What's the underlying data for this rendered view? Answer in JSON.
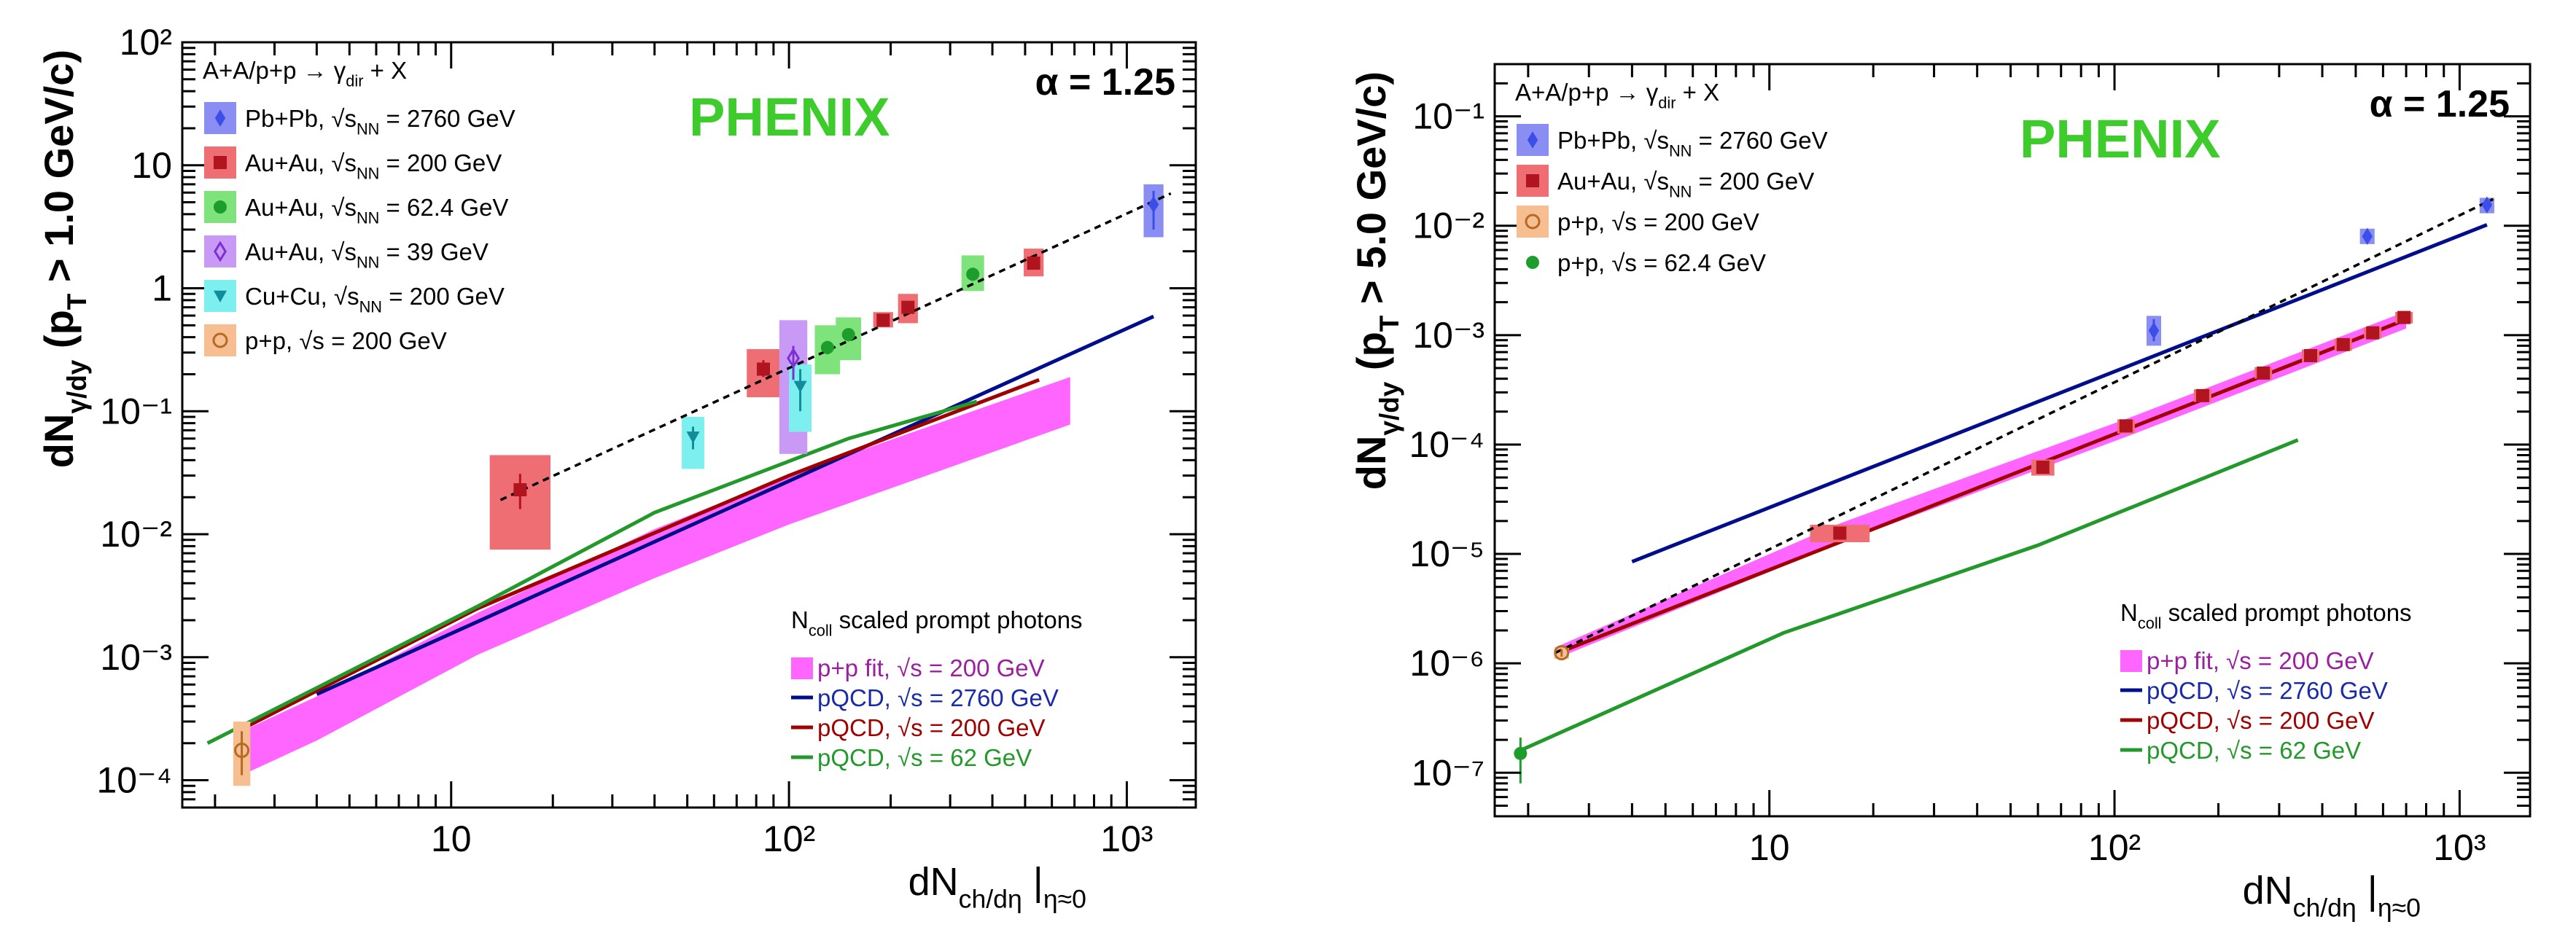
{
  "chart_data": [
    {
      "type": "scatter",
      "title": "PHENIX",
      "alpha_label": "α = 1.25",
      "process": "A+A/p+p → γ_dir + X",
      "xlabel": "dN_ch/dη |_η≈0",
      "ylabel": "dN_γ/dy  (p_T > 1.0 GeV/c)",
      "xscale": "log",
      "yscale": "log",
      "xlim": [
        1.6,
        1600
      ],
      "ylim": [
        6e-05,
        100
      ],
      "x_ticks": [
        {
          "v": 10,
          "label": "10"
        },
        {
          "v": 100,
          "label": "10²"
        },
        {
          "v": 1000,
          "label": "10³"
        }
      ],
      "y_ticks": [
        {
          "v": 0.0001,
          "label": "10⁻⁴"
        },
        {
          "v": 0.001,
          "label": "10⁻³"
        },
        {
          "v": 0.01,
          "label": "10⁻²"
        },
        {
          "v": 0.1,
          "label": "10⁻¹"
        },
        {
          "v": 1,
          "label": "1"
        },
        {
          "v": 10,
          "label": "10"
        },
        {
          "v": 100,
          "label": "10²"
        }
      ],
      "data_legend": [
        {
          "name": "Pb+Pb",
          "energy": "√s_NN = 2760 GeV",
          "color": "#3b4ee8",
          "marker": "diamond",
          "box": "#8a8ef2"
        },
        {
          "name": "Au+Au",
          "energy": "√s_NN = 200 GeV",
          "color": "#b0141e",
          "marker": "square",
          "box": "#ef6e73"
        },
        {
          "name": "Au+Au",
          "energy": "√s_NN = 62.4 GeV",
          "color": "#1c9d2c",
          "marker": "circle",
          "box": "#7fe37c"
        },
        {
          "name": "Au+Au",
          "energy": "√s_NN = 39 GeV",
          "color": "#7d2fd4",
          "marker": "open-diamond",
          "box": "#c89af6"
        },
        {
          "name": "Cu+Cu",
          "energy": "√s_NN = 200 GeV",
          "color": "#138c9a",
          "marker": "triangle-down",
          "box": "#7defef"
        },
        {
          "name": "p+p",
          "energy": "√s = 200 GeV",
          "color": "#b56a25",
          "marker": "open-circle",
          "box": "#f7be92"
        }
      ],
      "band_legend_title": "N_coll scaled prompt photons",
      "band_legend": [
        {
          "label": "p+p fit, √s = 200 GeV",
          "color": "#ff66ff",
          "kind": "band",
          "text_color": "#9b1fa0"
        },
        {
          "label": "pQCD, √s = 2760 GeV",
          "color": "#000e8c",
          "kind": "line",
          "text_color": "#1a2aa8"
        },
        {
          "label": "pQCD, √s = 200 GeV",
          "color": "#a00000",
          "kind": "line",
          "text_color": "#a00000"
        },
        {
          "label": "pQCD, √s = 62 GeV",
          "color": "#22992a",
          "kind": "line",
          "text_color": "#22992a"
        }
      ],
      "band": {
        "color": "#ff66ff",
        "x": [
          2.4,
          4,
          12,
          40,
          100,
          680
        ],
        "upper": [
          0.00025,
          0.00048,
          0.0023,
          0.011,
          0.03,
          0.19
        ],
        "lower": [
          0.00011,
          0.00021,
          0.00105,
          0.0044,
          0.012,
          0.078
        ]
      },
      "curves": [
        {
          "name": "pQCD 2760",
          "color": "#000e8c",
          "x": [
            4,
            1200
          ],
          "y": [
            0.0005,
            0.59
          ]
        },
        {
          "name": "pQCD 200",
          "color": "#a00000",
          "x": [
            2.4,
            12,
            100,
            550
          ],
          "y": [
            0.00026,
            0.0025,
            0.03,
            0.18
          ]
        },
        {
          "name": "pQCD 62",
          "color": "#22992a",
          "x": [
            1.9,
            12,
            40,
            150,
            360
          ],
          "y": [
            0.0002,
            0.0026,
            0.015,
            0.06,
            0.12
          ]
        }
      ],
      "fit": {
        "x": [
          14,
          1350
        ],
        "y": [
          0.019,
          5.9
        ]
      },
      "points": [
        {
          "sys": "Pb+Pb",
          "x": 1200,
          "y": 4.8,
          "ylo": 3.0,
          "yhi": 6.2,
          "sx": 1.07
        },
        {
          "sys": "Au+Au 200",
          "x": 16,
          "y": 0.023,
          "ylo": 0.016,
          "yhi": 0.031,
          "sx": 1.22
        },
        {
          "sys": "Au+Au 200",
          "x": 84,
          "y": 0.22,
          "ylo": 0.19,
          "yhi": 0.26,
          "sx": 1.1
        },
        {
          "sys": "Au+Au 200",
          "x": 190,
          "y": 0.55,
          "ylo": 0.5,
          "yhi": 0.61,
          "sx": 1.07
        },
        {
          "sys": "Au+Au 200",
          "x": 225,
          "y": 0.7,
          "ylo": 0.64,
          "yhi": 0.77,
          "sx": 1.07
        },
        {
          "sys": "Au+Au 200",
          "x": 530,
          "y": 1.6,
          "ylo": 1.45,
          "yhi": 1.8,
          "sx": 1.06
        },
        {
          "sys": "Au+Au 62.4",
          "x": 130,
          "y": 0.33,
          "ylo": 0.29,
          "yhi": 0.37,
          "sx": 1.07
        },
        {
          "sys": "Au+Au 62.4",
          "x": 150,
          "y": 0.42,
          "ylo": 0.37,
          "yhi": 0.47,
          "sx": 1.07
        },
        {
          "sys": "Au+Au 62.4",
          "x": 350,
          "y": 1.3,
          "ylo": 1.15,
          "yhi": 1.45,
          "sx": 1.06
        },
        {
          "sys": "Au+Au 39",
          "x": 103,
          "y": 0.27,
          "ylo": 0.18,
          "yhi": 0.34,
          "sx": 1.08
        },
        {
          "sys": "Cu+Cu",
          "x": 52,
          "y": 0.062,
          "ylo": 0.049,
          "yhi": 0.075,
          "sx": 1.07
        },
        {
          "sys": "Cu+Cu",
          "x": 108,
          "y": 0.16,
          "ylo": 0.1,
          "yhi": 0.22,
          "sx": 1.07
        },
        {
          "sys": "p+p",
          "x": 2.4,
          "y": 0.000175,
          "ylo": 0.00011,
          "yhi": 0.00025,
          "sx": 1.05
        }
      ],
      "sys_boxes": [
        {
          "sys": "Pb+Pb",
          "x": 1200,
          "ylo": 2.6,
          "yhi": 7.0,
          "sx": 1.07
        },
        {
          "sys": "Au+Au 200",
          "x": 16,
          "ylo": 0.0075,
          "yhi": 0.044,
          "sx": 1.23
        },
        {
          "sys": "Au+Au 200",
          "x": 84,
          "ylo": 0.13,
          "yhi": 0.32,
          "sx": 1.12
        },
        {
          "sys": "Au+Au 200",
          "x": 190,
          "ylo": 0.48,
          "yhi": 0.64,
          "sx": 1.07
        },
        {
          "sys": "Au+Au 200",
          "x": 225,
          "ylo": 0.52,
          "yhi": 0.9,
          "sx": 1.07
        },
        {
          "sys": "Au+Au 200",
          "x": 530,
          "ylo": 1.25,
          "yhi": 2.1,
          "sx": 1.07
        },
        {
          "sys": "Au+Au 62.4",
          "x": 130,
          "ylo": 0.2,
          "yhi": 0.5,
          "sx": 1.09
        },
        {
          "sys": "Au+Au 62.4",
          "x": 150,
          "ylo": 0.26,
          "yhi": 0.58,
          "sx": 1.09
        },
        {
          "sys": "Au+Au 62.4",
          "x": 350,
          "ylo": 0.95,
          "yhi": 1.85,
          "sx": 1.08
        },
        {
          "sys": "Au+Au 39",
          "x": 103,
          "ylo": 0.045,
          "yhi": 0.55,
          "sx": 1.1
        },
        {
          "sys": "Cu+Cu",
          "x": 52,
          "ylo": 0.034,
          "yhi": 0.09,
          "sx": 1.08
        },
        {
          "sys": "Cu+Cu",
          "x": 108,
          "ylo": 0.068,
          "yhi": 0.24,
          "sx": 1.08
        },
        {
          "sys": "p+p",
          "x": 2.4,
          "ylo": 9e-05,
          "yhi": 0.0003,
          "sx": 1.06
        }
      ]
    },
    {
      "type": "scatter",
      "title": "PHENIX",
      "alpha_label": "α = 1.25",
      "process": "A+A/p+p → γ_dir + X",
      "xlabel": "dN_ch/dη |_η≈0",
      "ylabel": "dN_γ/dy  (p_T > 5.0 GeV/c)",
      "xscale": "log",
      "yscale": "log",
      "xlim": [
        1.6,
        1600
      ],
      "ylim": [
        4e-08,
        0.3
      ],
      "x_ticks": [
        {
          "v": 10,
          "label": "10"
        },
        {
          "v": 100,
          "label": "10²"
        },
        {
          "v": 1000,
          "label": "10³"
        }
      ],
      "y_ticks": [
        {
          "v": 1e-07,
          "label": "10⁻⁷"
        },
        {
          "v": 1e-06,
          "label": "10⁻⁶"
        },
        {
          "v": 1e-05,
          "label": "10⁻⁵"
        },
        {
          "v": 0.0001,
          "label": "10⁻⁴"
        },
        {
          "v": 0.001,
          "label": "10⁻³"
        },
        {
          "v": 0.01,
          "label": "10⁻²"
        },
        {
          "v": 0.1,
          "label": "10⁻¹"
        }
      ],
      "data_legend": [
        {
          "name": "Pb+Pb",
          "energy": "√s_NN = 2760 GeV",
          "color": "#3b4ee8",
          "marker": "diamond",
          "box": "#8a8ef2"
        },
        {
          "name": "Au+Au",
          "energy": "√s_NN = 200 GeV",
          "color": "#b0141e",
          "marker": "square",
          "box": "#ef6e73"
        },
        {
          "name": "p+p",
          "energy": "√s = 200 GeV",
          "color": "#b56a25",
          "marker": "open-circle",
          "box": "#f7be92"
        },
        {
          "name": "p+p",
          "energy": "√s = 62.4 GeV",
          "color": "#1c9d2c",
          "marker": "circle",
          "box": "#ffffff"
        }
      ],
      "band_legend_title": "N_coll scaled prompt photons",
      "band_legend": [
        {
          "label": "p+p fit, √s = 200 GeV",
          "color": "#ff66ff",
          "kind": "band",
          "text_color": "#9b1fa0"
        },
        {
          "label": "pQCD, √s = 2760 GeV",
          "color": "#000e8c",
          "kind": "line",
          "text_color": "#1a2aa8"
        },
        {
          "label": "pQCD, √s = 200 GeV",
          "color": "#a00000",
          "kind": "line",
          "text_color": "#a00000"
        },
        {
          "label": "pQCD, √s = 62 GeV",
          "color": "#22992a",
          "kind": "line",
          "text_color": "#22992a"
        }
      ],
      "band": {
        "color": "#ff66ff",
        "x": [
          2.4,
          16,
          110,
          700
        ],
        "upper": [
          1.4e-06,
          1.9e-05,
          0.000175,
          0.00165
        ],
        "lower": [
          1.1e-06,
          1.25e-05,
          0.00012,
          0.00115
        ]
      },
      "curves": [
        {
          "name": "pQCD 2760",
          "color": "#000e8c",
          "x": [
            4,
            1200
          ],
          "y": [
            8.5e-06,
            0.0102
          ]
        },
        {
          "name": "pQCD 200",
          "color": "#a00000",
          "x": [
            2.4,
            700
          ],
          "y": [
            1.22e-06,
            0.00139
          ]
        },
        {
          "name": "pQCD 62",
          "color": "#22992a",
          "x": [
            1.9,
            11,
            60,
            340
          ],
          "y": [
            1.6e-07,
            1.9e-06,
            1.2e-05,
            0.00011
          ]
        }
      ],
      "fit": {
        "x": [
          2.4,
          1250
        ],
        "y": [
          1.25e-06,
          0.0175
        ]
      },
      "points": [
        {
          "sys": "Pb+Pb",
          "x": 130,
          "y": 0.0011,
          "ylo": 0.00088,
          "yhi": 0.0014,
          "sx": 1.05
        },
        {
          "sys": "Pb+Pb",
          "x": 540,
          "y": 0.008,
          "ylo": 0.0072,
          "yhi": 0.0089,
          "sx": 1.05
        },
        {
          "sys": "Pb+Pb",
          "x": 1200,
          "y": 0.0155,
          "ylo": 0.014,
          "yhi": 0.017,
          "sx": 1.05
        },
        {
          "sys": "Au+Au 200",
          "x": 16,
          "y": 1.55e-05,
          "ylo": 1.4e-05,
          "yhi": 1.7e-05,
          "sx": 1.07
        },
        {
          "sys": "Au+Au 200",
          "x": 62,
          "y": 6.2e-05,
          "ylo": 5.7e-05,
          "yhi": 6.8e-05,
          "sx": 1.06
        },
        {
          "sys": "Au+Au 200",
          "x": 108,
          "y": 0.000148,
          "ylo": 0.000136,
          "yhi": 0.00016,
          "sx": 1.06
        },
        {
          "sys": "Au+Au 200",
          "x": 180,
          "y": 0.00028,
          "ylo": 0.00026,
          "yhi": 0.0003,
          "sx": 1.06
        },
        {
          "sys": "Au+Au 200",
          "x": 270,
          "y": 0.00045,
          "ylo": 0.00042,
          "yhi": 0.00048,
          "sx": 1.06
        },
        {
          "sys": "Au+Au 200",
          "x": 370,
          "y": 0.00065,
          "ylo": 0.0006,
          "yhi": 0.0007,
          "sx": 1.06
        },
        {
          "sys": "Au+Au 200",
          "x": 460,
          "y": 0.00082,
          "ylo": 0.00076,
          "yhi": 0.00088,
          "sx": 1.06
        },
        {
          "sys": "Au+Au 200",
          "x": 560,
          "y": 0.00105,
          "ylo": 0.00097,
          "yhi": 0.00113,
          "sx": 1.06
        },
        {
          "sys": "Au+Au 200",
          "x": 690,
          "y": 0.00145,
          "ylo": 0.00134,
          "yhi": 0.00156,
          "sx": 1.06
        },
        {
          "sys": "p+p 200",
          "x": 2.5,
          "y": 1.25e-06,
          "ylo": 1.15e-06,
          "yhi": 1.35e-06,
          "sx": 1.04
        },
        {
          "sys": "p+p 62.4",
          "x": 1.9,
          "y": 1.5e-07,
          "ylo": 8e-08,
          "yhi": 2.1e-07,
          "sx": 1.04
        }
      ],
      "sys_boxes": [
        {
          "sys": "Pb+Pb",
          "x": 130,
          "ylo": 0.0008,
          "yhi": 0.0015,
          "sx": 1.05
        },
        {
          "sys": "Pb+Pb",
          "x": 540,
          "ylo": 0.0068,
          "yhi": 0.0094,
          "sx": 1.05
        },
        {
          "sys": "Pb+Pb",
          "x": 1200,
          "ylo": 0.013,
          "yhi": 0.018,
          "sx": 1.05
        },
        {
          "sys": "Au+Au 200",
          "x": 16,
          "ylo": 1.28e-05,
          "yhi": 1.85e-05,
          "sx": 1.22
        },
        {
          "sys": "Au+Au 200",
          "x": 62,
          "ylo": 5.2e-05,
          "yhi": 7.3e-05,
          "sx": 1.08
        },
        {
          "sys": "Au+Au 200",
          "x": 108,
          "ylo": 0.000126,
          "yhi": 0.00017,
          "sx": 1.06
        },
        {
          "sys": "Au+Au 200",
          "x": 180,
          "ylo": 0.000245,
          "yhi": 0.00032,
          "sx": 1.06
        },
        {
          "sys": "Au+Au 200",
          "x": 270,
          "ylo": 0.0004,
          "yhi": 0.00051,
          "sx": 1.06
        },
        {
          "sys": "Au+Au 200",
          "x": 370,
          "ylo": 0.00057,
          "yhi": 0.00074,
          "sx": 1.06
        },
        {
          "sys": "Au+Au 200",
          "x": 460,
          "ylo": 0.00072,
          "yhi": 0.00093,
          "sx": 1.06
        },
        {
          "sys": "Au+Au 200",
          "x": 560,
          "ylo": 0.00093,
          "yhi": 0.00118,
          "sx": 1.06
        },
        {
          "sys": "Au+Au 200",
          "x": 690,
          "ylo": 0.00128,
          "yhi": 0.00163,
          "sx": 1.06
        },
        {
          "sys": "p+p 200",
          "x": 2.5,
          "ylo": 1.1e-06,
          "yhi": 1.4e-06,
          "sx": 1.05
        }
      ]
    }
  ]
}
